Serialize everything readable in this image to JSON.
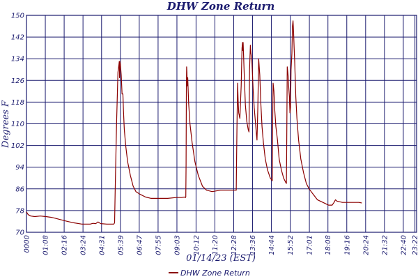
{
  "colors": {
    "background": "#ffffff",
    "grid": "#1a1a6e",
    "text": "#1a1a6e",
    "series": "#8b0000"
  },
  "chart_data": {
    "type": "line",
    "title": "DHW Zone Return",
    "xlabel": "01/14/23 (EST)",
    "ylabel": "Degrees F",
    "x_unit": "minutes",
    "xlim": [
      0,
      1408
    ],
    "ylim": [
      70,
      150
    ],
    "yticks": [
      70,
      78,
      86,
      94,
      102,
      110,
      118,
      126,
      134,
      142,
      150
    ],
    "xtick_values": [
      0,
      68,
      136,
      204,
      271,
      339,
      407,
      475,
      543,
      612,
      680,
      748,
      816,
      884,
      952,
      1021,
      1088,
      1156,
      1224,
      1292,
      1360,
      1402
    ],
    "xtick_labels": [
      "0000",
      "01:08",
      "02:16",
      "03:24",
      "04:31",
      "05:39",
      "06:47",
      "07:55",
      "09:03",
      "10:12",
      "11:20",
      "12:28",
      "13:36",
      "14:44",
      "15:52",
      "17:01",
      "18:08",
      "19:16",
      "20:24",
      "21:32",
      "22:40",
      "23:22"
    ],
    "grid": true,
    "legend": "bottom-center",
    "series": [
      {
        "name": "DHW Zone Return",
        "points": [
          [
            0,
            77.5
          ],
          [
            6,
            76.5
          ],
          [
            15,
            76
          ],
          [
            30,
            75.8
          ],
          [
            50,
            76
          ],
          [
            70,
            75.8
          ],
          [
            90,
            75.5
          ],
          [
            110,
            75
          ],
          [
            140,
            74.2
          ],
          [
            170,
            73.5
          ],
          [
            200,
            73
          ],
          [
            230,
            73
          ],
          [
            240,
            73.3
          ],
          [
            250,
            73.2
          ],
          [
            258,
            73.8
          ],
          [
            263,
            73.5
          ],
          [
            268,
            73.2
          ],
          [
            290,
            73
          ],
          [
            300,
            73
          ],
          [
            315,
            73
          ],
          [
            318,
            73.5
          ],
          [
            320,
            85
          ],
          [
            325,
            110
          ],
          [
            330,
            129
          ],
          [
            334,
            132
          ],
          [
            335,
            133
          ],
          [
            336,
            127
          ],
          [
            337,
            133
          ],
          [
            339,
            132
          ],
          [
            342,
            128
          ],
          [
            345,
            121
          ],
          [
            348,
            121
          ],
          [
            350,
            115
          ],
          [
            353,
            108
          ],
          [
            358,
            102
          ],
          [
            365,
            96
          ],
          [
            375,
            91
          ],
          [
            385,
            87
          ],
          [
            395,
            85
          ],
          [
            410,
            84
          ],
          [
            430,
            83
          ],
          [
            450,
            82.5
          ],
          [
            480,
            82.5
          ],
          [
            510,
            82.5
          ],
          [
            540,
            82.8
          ],
          [
            560,
            82.8
          ],
          [
            570,
            83
          ],
          [
            574,
            82.8
          ],
          [
            575,
            83
          ],
          [
            576,
            95
          ],
          [
            577,
            122
          ],
          [
            578,
            131
          ],
          [
            579,
            129
          ],
          [
            580,
            124
          ],
          [
            582,
            127
          ],
          [
            585,
            118
          ],
          [
            590,
            110
          ],
          [
            598,
            103
          ],
          [
            608,
            96
          ],
          [
            620,
            91
          ],
          [
            635,
            87
          ],
          [
            650,
            85.5
          ],
          [
            670,
            85
          ],
          [
            700,
            85.5
          ],
          [
            720,
            85.5
          ],
          [
            745,
            85.5
          ],
          [
            757,
            85.5
          ],
          [
            758,
            95
          ],
          [
            760,
            112
          ],
          [
            762,
            125
          ],
          [
            764,
            118
          ],
          [
            766,
            114
          ],
          [
            770,
            112
          ],
          [
            775,
            124
          ],
          [
            778,
            138
          ],
          [
            780,
            140
          ],
          [
            781,
            137
          ],
          [
            782,
            140
          ],
          [
            786,
            128
          ],
          [
            790,
            117
          ],
          [
            795,
            111
          ],
          [
            800,
            108
          ],
          [
            803,
            107
          ],
          [
            805,
            130
          ],
          [
            808,
            139
          ],
          [
            810,
            136
          ],
          [
            813,
            134
          ],
          [
            818,
            123
          ],
          [
            822,
            116
          ],
          [
            826,
            111
          ],
          [
            830,
            106
          ],
          [
            832,
            104
          ],
          [
            835,
            116
          ],
          [
            838,
            134
          ],
          [
            842,
            128
          ],
          [
            846,
            117
          ],
          [
            850,
            109
          ],
          [
            855,
            103
          ],
          [
            862,
            97
          ],
          [
            870,
            93
          ],
          [
            880,
            90
          ],
          [
            887,
            89
          ],
          [
            888,
            105
          ],
          [
            890,
            125
          ],
          [
            893,
            122
          ],
          [
            896,
            115
          ],
          [
            900,
            109
          ],
          [
            906,
            104
          ],
          [
            912,
            97
          ],
          [
            920,
            93
          ],
          [
            928,
            90
          ],
          [
            935,
            88.5
          ],
          [
            938,
            88
          ],
          [
            939,
            100
          ],
          [
            941,
            131
          ],
          [
            944,
            128
          ],
          [
            946,
            124
          ],
          [
            949,
            120
          ],
          [
            951,
            114
          ],
          [
            953,
            116
          ],
          [
            955,
            130
          ],
          [
            958,
            136
          ],
          [
            960,
            146
          ],
          [
            962,
            148
          ],
          [
            964,
            144
          ],
          [
            966,
            138
          ],
          [
            968,
            133
          ],
          [
            972,
            120
          ],
          [
            976,
            112
          ],
          [
            982,
            104
          ],
          [
            990,
            97
          ],
          [
            1000,
            92
          ],
          [
            1010,
            88
          ],
          [
            1020,
            86
          ],
          [
            1035,
            84
          ],
          [
            1050,
            82
          ],
          [
            1070,
            81
          ],
          [
            1090,
            80
          ],
          [
            1103,
            80
          ],
          [
            1110,
            81
          ],
          [
            1115,
            82
          ],
          [
            1120,
            81.5
          ],
          [
            1140,
            81
          ],
          [
            1170,
            81
          ],
          [
            1200,
            81
          ],
          [
            1210,
            80.8
          ]
        ]
      }
    ]
  }
}
